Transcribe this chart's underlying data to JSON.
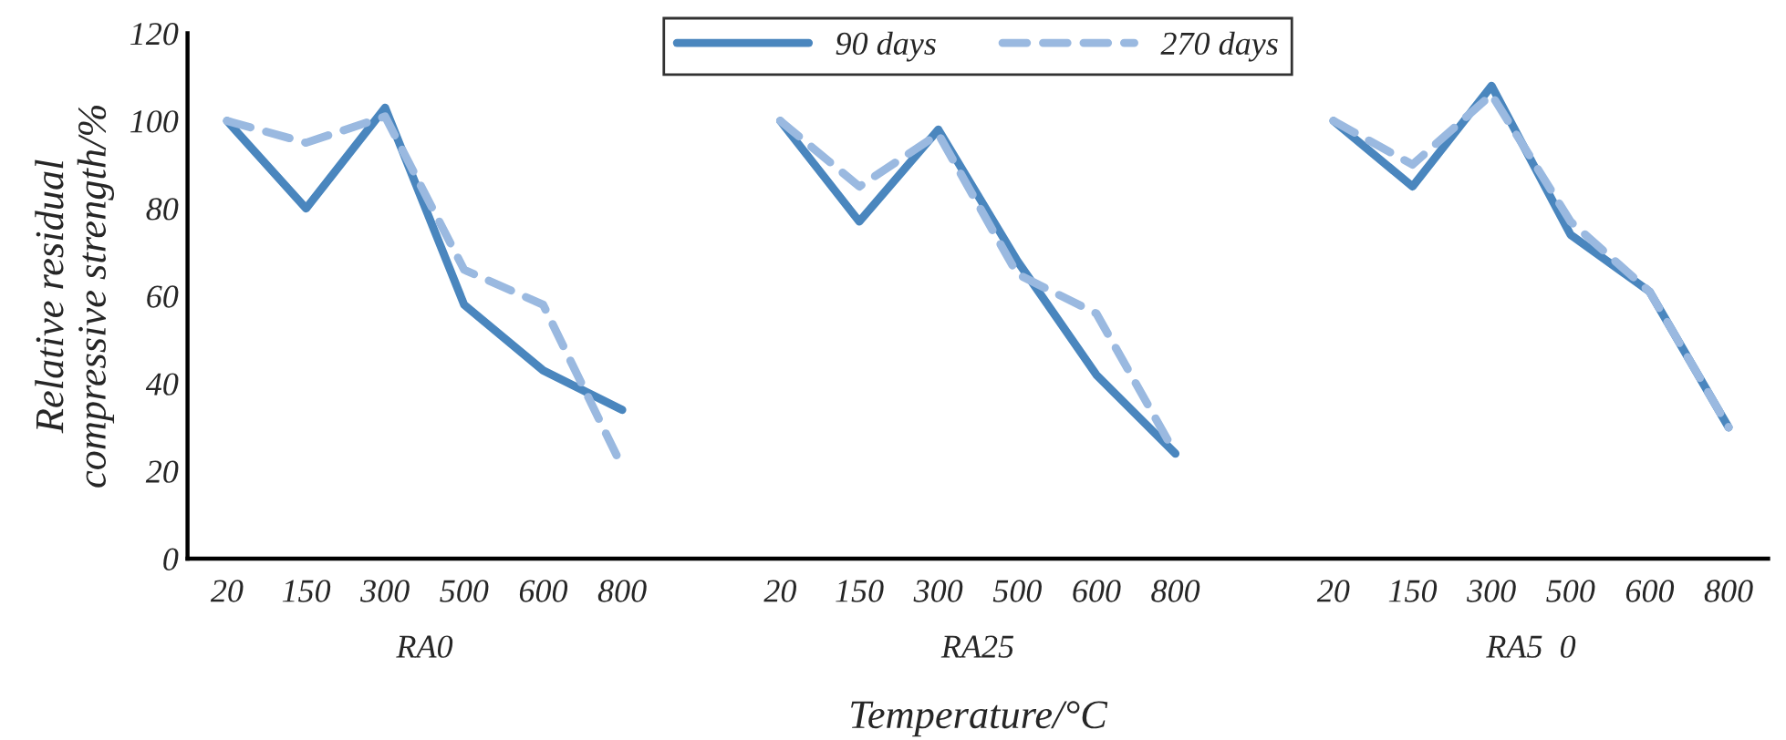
{
  "chart_data": {
    "type": "line",
    "ylabel": "Relative residual compressive strength/%",
    "xlabel": "Temperature/°C",
    "categories": [
      "20",
      "150",
      "300",
      "500",
      "600",
      "800",
      null,
      "20",
      "150",
      "300",
      "500",
      "600",
      "800",
      null,
      "20",
      "150",
      "300",
      "500",
      "600",
      "800"
    ],
    "series": [
      {
        "name": "90 days",
        "color": "#4a86be",
        "line_style": "solid",
        "values": [
          100,
          80,
          103,
          58,
          43,
          34,
          null,
          100,
          77,
          98,
          68,
          42,
          24,
          null,
          100,
          85,
          108,
          74,
          61,
          30
        ]
      },
      {
        "name": "270 days",
        "color": "#9ab9e0",
        "line_style": "dashed",
        "values": [
          100,
          95,
          101,
          66,
          58,
          21,
          null,
          100,
          85,
          97,
          65,
          56,
          24,
          null,
          100,
          90,
          106,
          77,
          61,
          30
        ]
      }
    ],
    "annotations": [
      "RA0",
      "RA25",
      "RA5  0"
    ],
    "ylim": [
      0,
      120
    ],
    "yticks": [
      0,
      20,
      40,
      60,
      80,
      100,
      120
    ],
    "grid": false,
    "legend": "top",
    "marker": "none"
  }
}
